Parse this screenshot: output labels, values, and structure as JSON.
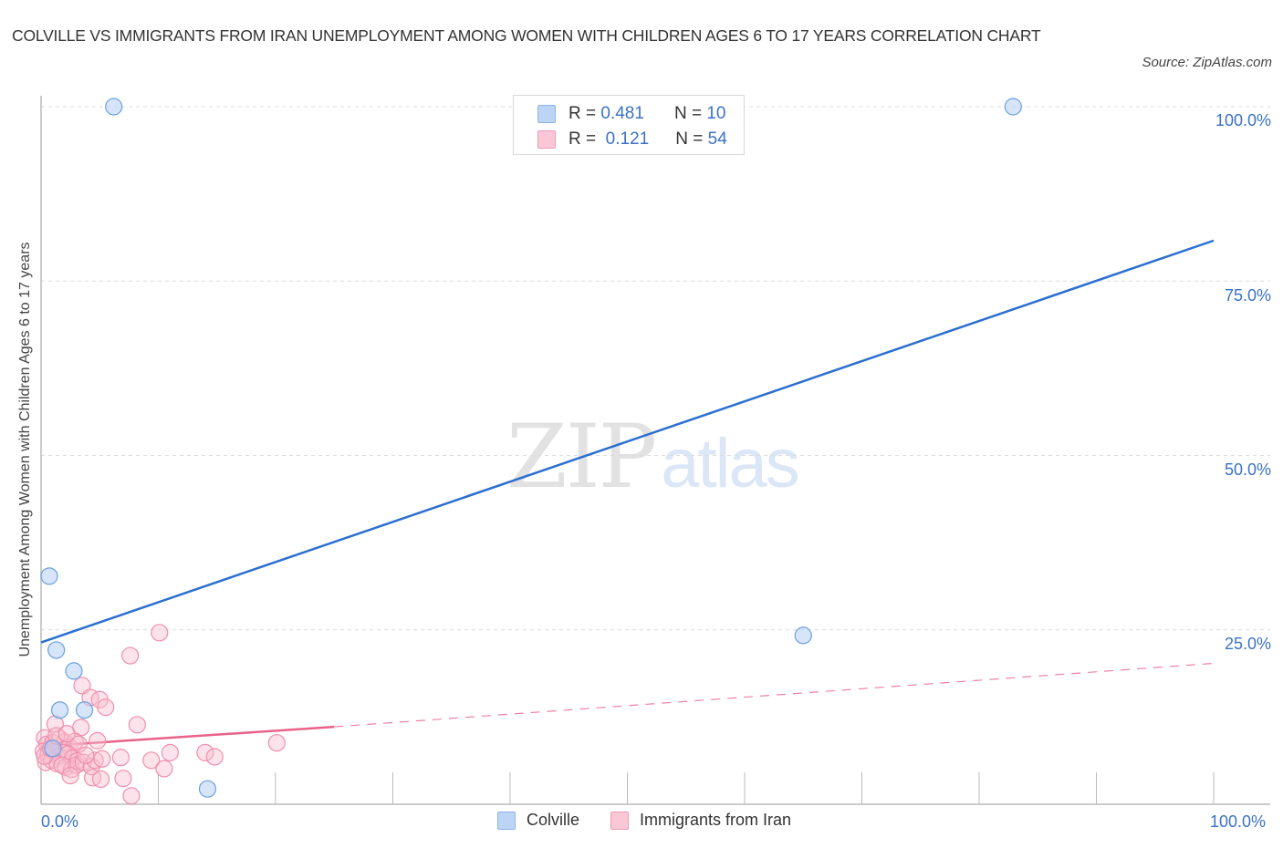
{
  "header": {
    "title": "COLVILLE VS IMMIGRANTS FROM IRAN UNEMPLOYMENT AMONG WOMEN WITH CHILDREN AGES 6 TO 17 YEARS CORRELATION CHART",
    "source": "Source: ZipAtlas.com"
  },
  "legend_box": {
    "rows": [
      {
        "r_label": "R =",
        "r_value": "0.481",
        "n_label": "N =",
        "n_value": "10",
        "color": "#a9c8f0"
      },
      {
        "r_label": "R =",
        "r_value": "0.121",
        "n_label": "N =",
        "n_value": "54",
        "color": "#f7b6c9"
      }
    ]
  },
  "bottom_legend": [
    {
      "label": "Colville",
      "color": "#a9c8f0"
    },
    {
      "label": "Immigrants from Iran",
      "color": "#f7b6c9"
    }
  ],
  "watermark": {
    "zip": "ZIP",
    "atlas": "atlas"
  },
  "axes": {
    "y_ticks": [
      "100.0%",
      "75.0%",
      "50.0%",
      "25.0%"
    ],
    "x_ticks": [
      "0.0%",
      "100.0%"
    ]
  },
  "chart_data": {
    "type": "scatter",
    "title": "COLVILLE VS IMMIGRANTS FROM IRAN UNEMPLOYMENT AMONG WOMEN WITH CHILDREN AGES 6 TO 17 YEARS CORRELATION CHART",
    "xlabel": "",
    "ylabel": "Unemployment Among Women with Children Ages 6 to 17 years",
    "xlim": [
      0,
      100
    ],
    "ylim": [
      0,
      100
    ],
    "x_tick_labels": [
      "0.0%",
      "100.0%"
    ],
    "y_tick_labels": [
      "25.0%",
      "50.0%",
      "75.0%",
      "100.0%"
    ],
    "grid": true,
    "legend_position": "bottom-center",
    "series": [
      {
        "name": "Colville",
        "color": "#6a9fe0",
        "R": 0.481,
        "N": 10,
        "points": [
          [
            6.2,
            100
          ],
          [
            82.9,
            100
          ],
          [
            0.7,
            32.7
          ],
          [
            1.3,
            22.1
          ],
          [
            2.8,
            19.1
          ],
          [
            1.6,
            13.5
          ],
          [
            3.7,
            13.5
          ],
          [
            14.2,
            2.2
          ],
          [
            65.0,
            24.2
          ],
          [
            1.0,
            8.0
          ]
        ],
        "trend": {
          "x": [
            0,
            100
          ],
          "y": [
            23.2,
            80.8
          ],
          "style": "solid"
        }
      },
      {
        "name": "Immigrants from Iran",
        "color": "#ef7fa0",
        "R": 0.121,
        "N": 54,
        "points": [
          [
            10.1,
            24.6
          ],
          [
            7.6,
            21.3
          ],
          [
            3.5,
            17.0
          ],
          [
            4.2,
            15.3
          ],
          [
            5.0,
            15.0
          ],
          [
            5.5,
            13.9
          ],
          [
            8.2,
            11.4
          ],
          [
            3.4,
            11.0
          ],
          [
            1.2,
            11.5
          ],
          [
            0.3,
            9.5
          ],
          [
            0.5,
            8.6
          ],
          [
            1.0,
            8.8
          ],
          [
            1.6,
            9.4
          ],
          [
            2.0,
            8.9
          ],
          [
            2.4,
            8.2
          ],
          [
            2.9,
            9.0
          ],
          [
            3.2,
            8.6
          ],
          [
            4.8,
            9.1
          ],
          [
            0.2,
            7.6
          ],
          [
            0.6,
            7.1
          ],
          [
            1.1,
            7.6
          ],
          [
            1.5,
            6.9
          ],
          [
            1.9,
            7.4
          ],
          [
            2.3,
            7.2
          ],
          [
            2.7,
            6.6
          ],
          [
            3.1,
            6.2
          ],
          [
            0.4,
            6.0
          ],
          [
            0.9,
            6.3
          ],
          [
            1.4,
            5.8
          ],
          [
            2.1,
            5.3
          ],
          [
            2.6,
            5.0
          ],
          [
            3.0,
            5.6
          ],
          [
            3.6,
            6.0
          ],
          [
            4.3,
            5.4
          ],
          [
            4.6,
            6.3
          ],
          [
            0.3,
            6.9
          ],
          [
            0.8,
            8.0
          ],
          [
            1.8,
            5.6
          ],
          [
            2.5,
            4.1
          ],
          [
            4.4,
            3.8
          ],
          [
            5.2,
            6.5
          ],
          [
            6.8,
            6.7
          ],
          [
            9.4,
            6.3
          ],
          [
            11.0,
            7.4
          ],
          [
            14.0,
            7.4
          ],
          [
            14.8,
            6.8
          ],
          [
            10.5,
            5.1
          ],
          [
            7.0,
            3.7
          ],
          [
            5.1,
            3.6
          ],
          [
            7.7,
            1.2
          ],
          [
            20.1,
            8.8
          ],
          [
            3.8,
            7.0
          ],
          [
            1.3,
            9.8
          ],
          [
            2.2,
            10.1
          ]
        ],
        "trend": {
          "x": [
            0,
            25,
            100
          ],
          "y": [
            8.3,
            11.1,
            20.2
          ],
          "style": "solid to 25%, dashed beyond"
        }
      }
    ]
  }
}
